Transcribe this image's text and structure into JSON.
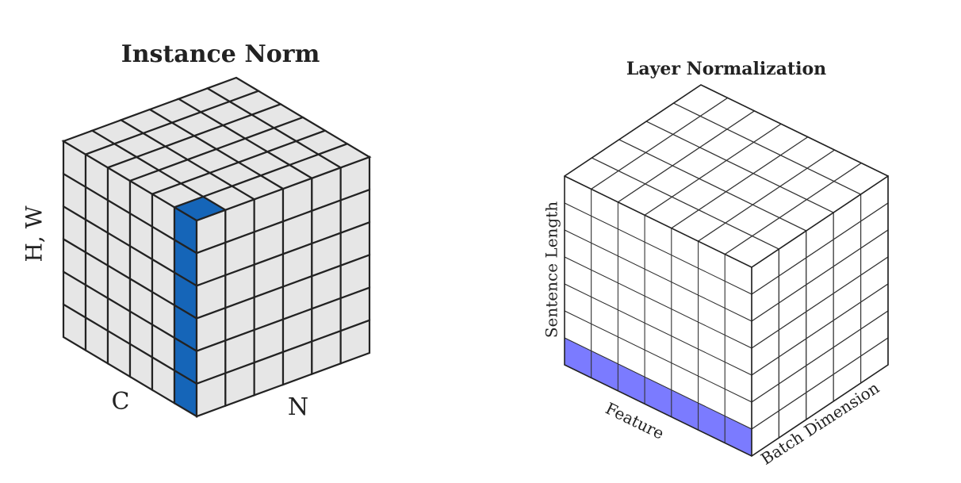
{
  "left": {
    "title": "Instance Norm",
    "labels": {
      "vertical": "H, W",
      "left": "C",
      "right": "N"
    }
  },
  "right": {
    "title": "Layer Normalization",
    "labels": {
      "vertical": "Sentence Length",
      "left": "Feature",
      "right": "Batch Dimension"
    }
  }
}
